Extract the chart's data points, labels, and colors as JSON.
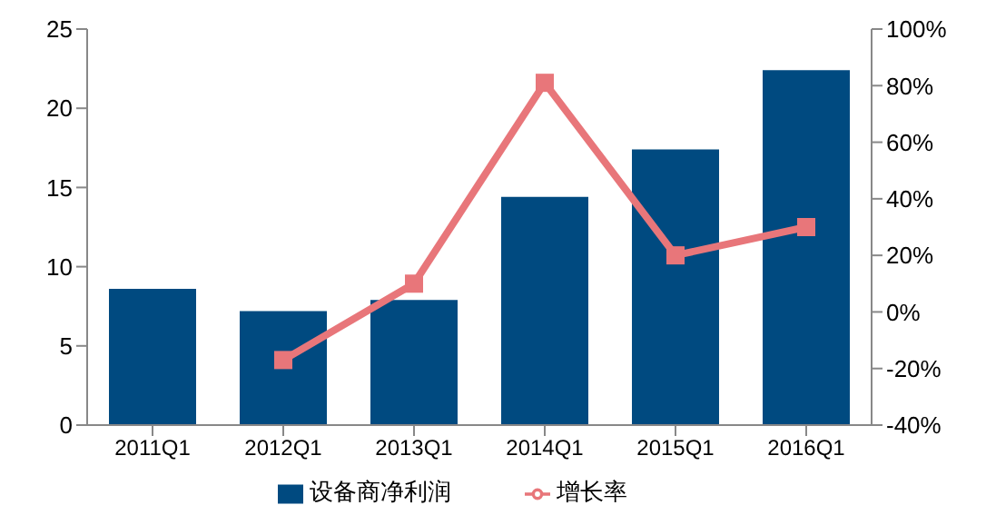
{
  "chart_data": {
    "type": "bar",
    "categories": [
      "2011Q1",
      "2012Q1",
      "2013Q1",
      "2014Q1",
      "2015Q1",
      "2016Q1"
    ],
    "series": [
      {
        "name": "设备商净利润",
        "color": "#004a80",
        "values": [
          8.6,
          7.2,
          7.9,
          14.4,
          17.4,
          22.4
        ]
      },
      {
        "name": "增长率",
        "type": "line",
        "axis": "y2",
        "color": "#e8767a",
        "marker": "square",
        "values": [
          null,
          -17,
          10,
          81,
          20,
          30
        ]
      }
    ],
    "ylim": [
      0,
      25
    ],
    "yticks": [
      0,
      5,
      10,
      15,
      20,
      25
    ],
    "y2lim": [
      -40,
      100
    ],
    "y2ticks": [
      {
        "value": -40,
        "label": "-40%"
      },
      {
        "value": -20,
        "label": "-20%"
      },
      {
        "value": 0,
        "label": "0%"
      },
      {
        "value": 20,
        "label": "20%"
      },
      {
        "value": 40,
        "label": "40%"
      },
      {
        "value": 60,
        "label": "60%"
      },
      {
        "value": 80,
        "label": "80%"
      },
      {
        "value": 100,
        "label": "100%"
      }
    ],
    "legend": "bottom"
  }
}
